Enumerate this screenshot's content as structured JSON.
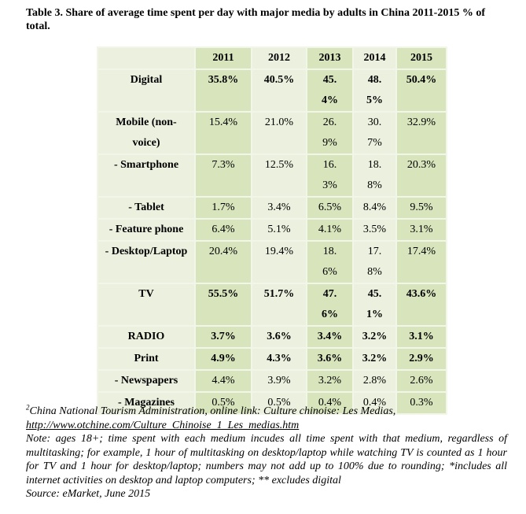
{
  "title": "Table 3. Share of average time spent per day with major media by adults in China 2011-2015 % of total.",
  "table": {
    "headers": [
      "",
      "2011",
      "2012",
      "2013",
      "2014",
      "2015"
    ],
    "rows": [
      {
        "label": "Digital",
        "bold": true,
        "values": [
          "35.8%",
          "40.5%",
          "45.4%",
          "48.5%",
          "50.4%"
        ]
      },
      {
        "label": "Mobile (non-voice)",
        "bold": false,
        "values": [
          "15.4%",
          "21.0%",
          "26.9%",
          "30.7%",
          "32.9%"
        ]
      },
      {
        "label": "- Smartphone",
        "bold": false,
        "values": [
          "7.3%",
          "12.5%",
          "16.3%",
          "18.8%",
          "20.3%"
        ]
      },
      {
        "label": "- Tablet",
        "bold": false,
        "values": [
          "1.7%",
          "3.4%",
          "6.5%",
          "8.4%",
          "9.5%"
        ]
      },
      {
        "label": "- Feature phone",
        "bold": false,
        "values": [
          "6.4%",
          "5.1%",
          "4.1%",
          "3.5%",
          "3.1%"
        ]
      },
      {
        "label": "- Desktop/Laptop",
        "bold": false,
        "values": [
          "20.4%",
          "19.4%",
          "18.6%",
          "17.8%",
          "17.4%"
        ]
      },
      {
        "label": "TV",
        "bold": true,
        "values": [
          "55.5%",
          "51.7%",
          "47.6%",
          "45.1%",
          "43.6%"
        ]
      },
      {
        "label": "RADIO",
        "bold": true,
        "values": [
          "3.7%",
          "3.6%",
          "3.4%",
          "3.2%",
          "3.1%"
        ]
      },
      {
        "label": "Print",
        "bold": true,
        "values": [
          "4.9%",
          "4.3%",
          "3.6%",
          "3.2%",
          "2.9%"
        ]
      },
      {
        "label": "- Newspapers",
        "bold": false,
        "values": [
          "4.4%",
          "3.9%",
          "3.2%",
          "2.8%",
          "2.6%"
        ]
      },
      {
        "label": "- Magazines",
        "bold": false,
        "values": [
          "0.5%",
          "0.5%",
          "0.4%",
          "0.4%",
          "0.3%"
        ]
      }
    ]
  },
  "footnote": {
    "sup": "2",
    "source_text": "China National Tourism Administration, online link: Culture chinoise: Les Medias,",
    "link": "http://www.otchine.com/Culture_Chinoise_1_Les_medias.htm",
    "note": "Note: ages 18+; time spent with each medium incudes all time spent with that medium, regardless of multitasking; for example, 1 hour of multitasking on desktop/laptop while watching TV is counted as 1 hour for TV and 1 hour for desktop/laptop; numbers may not add up to 100% due to rounding; *includes all internet activities on desktop and laptop computers; ** excludes digital",
    "source": "Source: eMarket, June 2015"
  },
  "colors": {
    "light": "#ebf1de",
    "dark": "#d7e4bc",
    "border": "#c3d69b"
  }
}
